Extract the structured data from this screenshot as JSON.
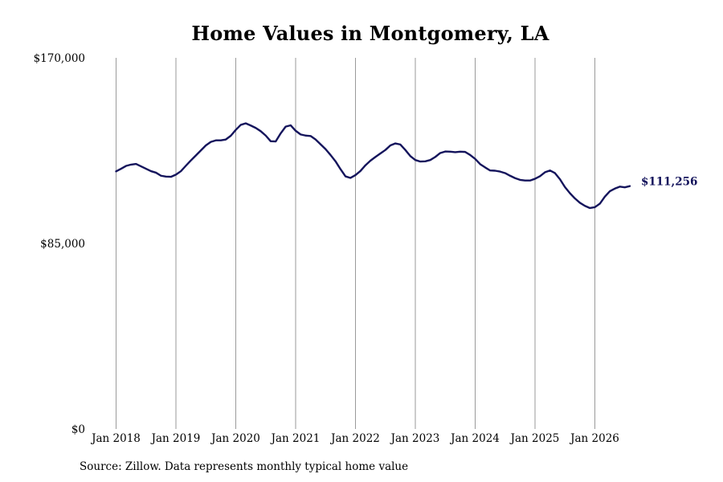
{
  "chart_data": {
    "type": "line",
    "title": "Home Values in Montgomery, LA",
    "xlabel": "",
    "ylabel": "",
    "ylim": [
      0,
      170000
    ],
    "y_ticks": [
      {
        "value": 0,
        "label": "$0"
      },
      {
        "value": 85000,
        "label": "$85,000"
      },
      {
        "value": 170000,
        "label": "$170,000"
      }
    ],
    "x_ticks": [
      {
        "value": "2018-01",
        "label": "Jan 2018"
      },
      {
        "value": "2019-01",
        "label": "Jan 2019"
      },
      {
        "value": "2020-01",
        "label": "Jan 2020"
      },
      {
        "value": "2021-01",
        "label": "Jan 2021"
      },
      {
        "value": "2022-01",
        "label": "Jan 2022"
      },
      {
        "value": "2023-01",
        "label": "Jan 2023"
      },
      {
        "value": "2024-01",
        "label": "Jan 2024"
      },
      {
        "value": "2025-01",
        "label": "Jan 2025"
      },
      {
        "value": "2026-01",
        "label": "Jan 2026"
      }
    ],
    "grid": "vertical",
    "line_color": "#14145c",
    "grid_color": "#9a9a9a",
    "end_label": "$111,256",
    "series": [
      {
        "x": [
          "2018-01",
          "2018-02",
          "2018-03",
          "2018-04",
          "2018-05",
          "2018-06",
          "2018-07",
          "2018-08",
          "2018-09",
          "2018-10",
          "2018-11",
          "2018-12",
          "2019-01",
          "2019-02",
          "2019-03",
          "2019-04",
          "2019-05",
          "2019-06",
          "2019-07",
          "2019-08",
          "2019-09",
          "2019-10",
          "2019-11",
          "2019-12",
          "2020-01",
          "2020-02",
          "2020-03",
          "2020-04",
          "2020-05",
          "2020-06",
          "2020-07",
          "2020-08",
          "2020-09",
          "2020-10",
          "2020-11",
          "2020-12",
          "2021-01",
          "2021-02",
          "2021-03",
          "2021-04",
          "2021-05",
          "2021-06",
          "2021-07",
          "2021-08",
          "2021-09",
          "2021-10",
          "2021-11",
          "2021-12",
          "2022-01",
          "2022-02",
          "2022-03",
          "2022-04",
          "2022-05",
          "2022-06",
          "2022-07",
          "2022-08",
          "2022-09",
          "2022-10",
          "2022-11",
          "2022-12",
          "2023-01",
          "2023-02",
          "2023-03",
          "2023-04",
          "2023-05",
          "2023-06",
          "2023-07",
          "2023-08",
          "2023-09",
          "2023-10",
          "2023-11",
          "2023-12",
          "2024-01",
          "2024-02",
          "2024-03",
          "2024-04",
          "2024-05",
          "2024-06",
          "2024-07",
          "2024-08",
          "2024-09",
          "2024-10",
          "2024-11",
          "2024-12",
          "2025-01",
          "2025-02",
          "2025-03",
          "2025-04",
          "2025-05",
          "2025-06",
          "2025-07",
          "2025-08",
          "2025-09",
          "2025-10",
          "2025-11",
          "2025-12",
          "2026-01",
          "2026-02",
          "2026-03",
          "2026-04",
          "2026-05",
          "2026-06",
          "2026-07",
          "2026-08"
        ],
        "values": [
          118000,
          119200,
          120500,
          121100,
          121400,
          120300,
          119200,
          118100,
          117400,
          116000,
          115600,
          115500,
          116500,
          118100,
          120600,
          123000,
          125300,
          127600,
          129900,
          131500,
          132200,
          132200,
          132600,
          134300,
          137000,
          139300,
          140000,
          139000,
          137900,
          136400,
          134400,
          131800,
          131700,
          135400,
          138500,
          139100,
          136600,
          134900,
          134400,
          134200,
          132600,
          130400,
          128200,
          125500,
          122600,
          119000,
          115700,
          115000,
          116300,
          118200,
          120800,
          122900,
          124600,
          126200,
          127800,
          129900,
          130800,
          130300,
          127800,
          125000,
          123200,
          122500,
          122600,
          123200,
          124600,
          126400,
          127100,
          127000,
          126800,
          127000,
          126900,
          125500,
          123700,
          121300,
          119800,
          118400,
          118300,
          117900,
          117200,
          116000,
          114900,
          114100,
          113800,
          113800,
          114600,
          115800,
          117600,
          118400,
          117200,
          114400,
          110800,
          108000,
          105600,
          103600,
          102200,
          101200,
          101600,
          103200,
          106400,
          108900,
          110100,
          111000,
          110700,
          111256
        ]
      }
    ]
  },
  "source_note": "Source: Zillow. Data represents monthly typical home value"
}
